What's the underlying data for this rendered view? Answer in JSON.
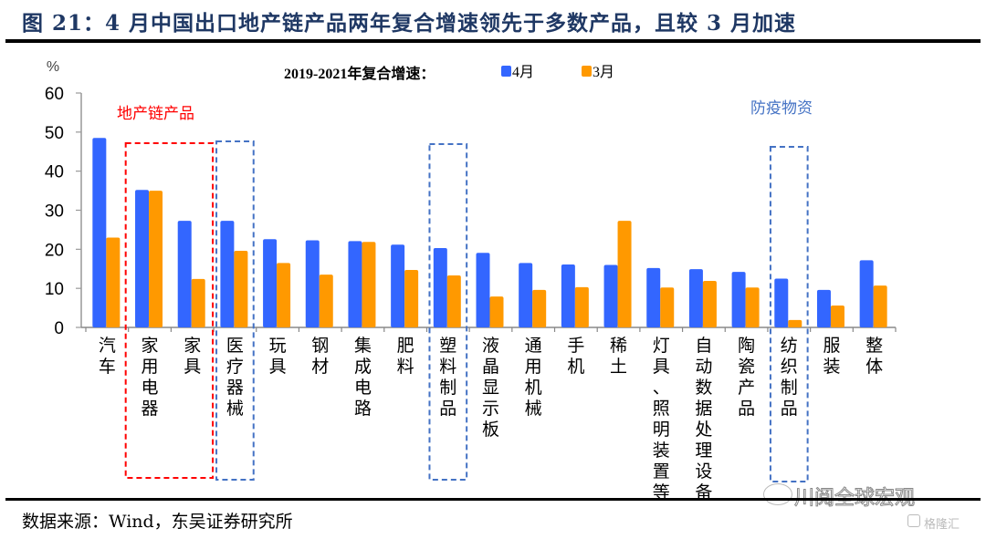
{
  "figure_title": "图 21：4 月中国出口地产链产品两年复合增速领先于多数产品，且较 3 月加速",
  "source": "数据来源：Wind，东吴证券研究所",
  "watermark": {
    "wechat": "川阅全球宏观",
    "site": "格隆汇"
  },
  "colors": {
    "april": "#3366FF",
    "march": "#FF9900",
    "real_estate_box": "#FF0000",
    "epidemic_box": "#4472C4",
    "title": "#1F3864"
  },
  "annotations": {
    "real_estate": "地产链产品",
    "epidemic": "防疫物资"
  },
  "chart_data": {
    "type": "bar",
    "title": "2019-2021年复合增速：",
    "ylabel": "%",
    "xlabel": "",
    "ylim": [
      0,
      60
    ],
    "yticks": [
      0,
      10,
      20,
      30,
      40,
      50,
      60
    ],
    "grid": false,
    "legend_position": "top-center",
    "categories": [
      "汽车",
      "家用电器",
      "家具",
      "医疗器械",
      "玩具",
      "钢材",
      "集成电路",
      "肥料",
      "塑料制品",
      "液晶显示板",
      "通用机械",
      "手机",
      "稀土",
      "灯具、照明装置等",
      "自动数据处理设备",
      "陶瓷产品",
      "纺织制品",
      "服装",
      "整体"
    ],
    "series": [
      {
        "name": "4月",
        "values": [
          48.5,
          35.2,
          27.3,
          27.3,
          22.6,
          22.3,
          22.1,
          21.2,
          20.3,
          19.1,
          16.5,
          16.1,
          16.0,
          15.2,
          14.9,
          14.2,
          12.5,
          9.6,
          17.2
        ]
      },
      {
        "name": "3月",
        "values": [
          23.0,
          35.0,
          12.4,
          19.6,
          16.5,
          13.5,
          21.9,
          14.7,
          13.3,
          7.9,
          9.6,
          10.3,
          27.3,
          10.2,
          11.9,
          10.2,
          1.9,
          5.6,
          10.7
        ]
      }
    ],
    "highlight_groups": [
      {
        "label": "地产链产品",
        "categories": [
          "家用电器",
          "家具"
        ],
        "style": "red-dashed"
      },
      {
        "label": "防疫物资",
        "categories": [
          "医疗器械"
        ],
        "style": "blue-dashed"
      },
      {
        "label": "防疫物资",
        "categories": [
          "塑料制品"
        ],
        "style": "blue-dashed"
      },
      {
        "label": "防疫物资",
        "categories": [
          "纺织制品"
        ],
        "style": "blue-dashed"
      }
    ]
  }
}
